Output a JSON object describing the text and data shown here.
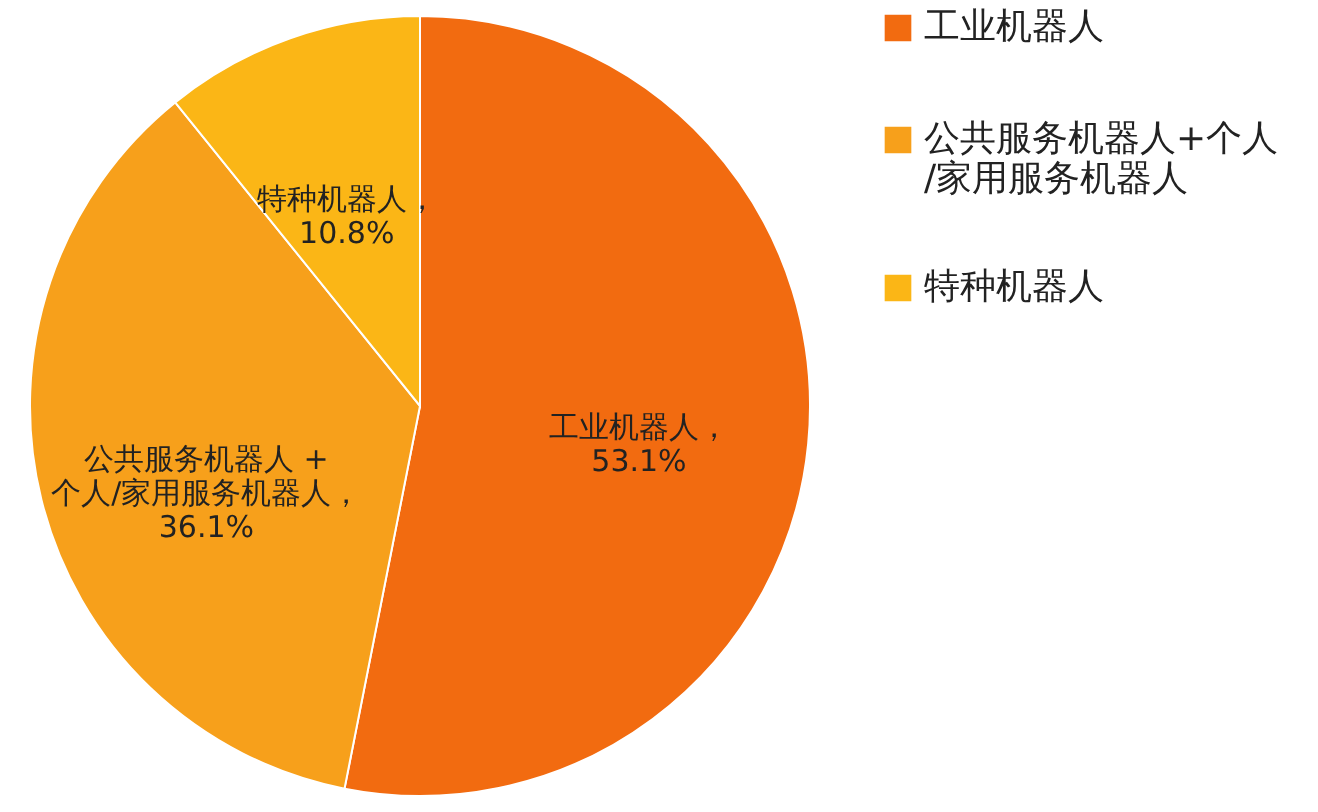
{
  "chart_data": {
    "type": "pie",
    "categories": [
      "工业机器人",
      "公共服务机器人+个人\n/家用服务机器人",
      "特种机器人"
    ],
    "values": [
      53.1,
      36.1,
      10.8
    ],
    "colors": [
      "#f26b10",
      "#f7a01b",
      "#fbb616"
    ],
    "value_labels": [
      "工业机器人，\n53.1%",
      "公共服务机器人 +\n个人/家用服务机器人，\n36.1%",
      "特种机器人，\n10.8%"
    ],
    "legend": "right"
  }
}
